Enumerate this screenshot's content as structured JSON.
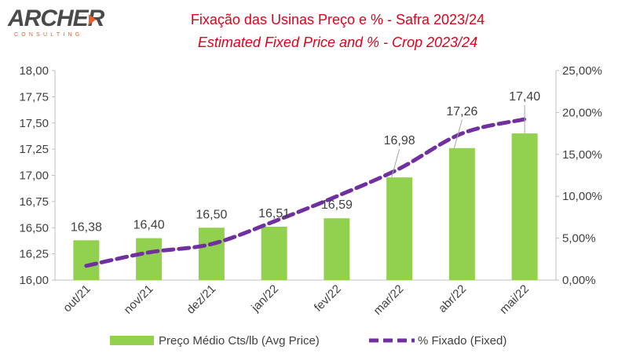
{
  "logo": {
    "text": "ARCHER",
    "subtext": "CONSULTING"
  },
  "title": "Fixação das Usinas Preço e %  - Safra 2023/24",
  "subtitle": "Estimated Fixed Price and % - Crop 2023/24",
  "chart_data": {
    "type": "bar+line",
    "categories": [
      "out/21",
      "nov/21",
      "dez/21",
      "jan/22",
      "fev/22",
      "mar/22",
      "abr/22",
      "mai/22"
    ],
    "series": [
      {
        "name": "Preço Médio Cts/lb (Avg Price)",
        "type": "bar",
        "axis": "left",
        "values": [
          16.38,
          16.4,
          16.5,
          16.51,
          16.59,
          16.98,
          17.26,
          17.4
        ],
        "labels": [
          "16,38",
          "16,40",
          "16,50",
          "16,51",
          "16,59",
          "16,98",
          "17,26",
          "17,40"
        ],
        "color": "#92d050"
      },
      {
        "name": "% Fixado (Fixed)",
        "type": "line",
        "axis": "right",
        "style": "dashed",
        "values": [
          1.7,
          3.3,
          4.3,
          7.0,
          10.0,
          13.3,
          17.5,
          19.2
        ],
        "color": "#7030a0"
      }
    ],
    "y_left": {
      "min": 16.0,
      "max": 18.0,
      "step": 0.25,
      "ticks": [
        "16,00",
        "16,25",
        "16,50",
        "16,75",
        "17,00",
        "17,25",
        "17,50",
        "17,75",
        "18,00"
      ]
    },
    "y_right": {
      "min": 0,
      "max": 25,
      "step": 5,
      "ticks": [
        "0,00%",
        "5,00%",
        "10,00%",
        "15,00%",
        "20,00%",
        "25,00%"
      ]
    },
    "grid": false,
    "legend": "bottom"
  }
}
